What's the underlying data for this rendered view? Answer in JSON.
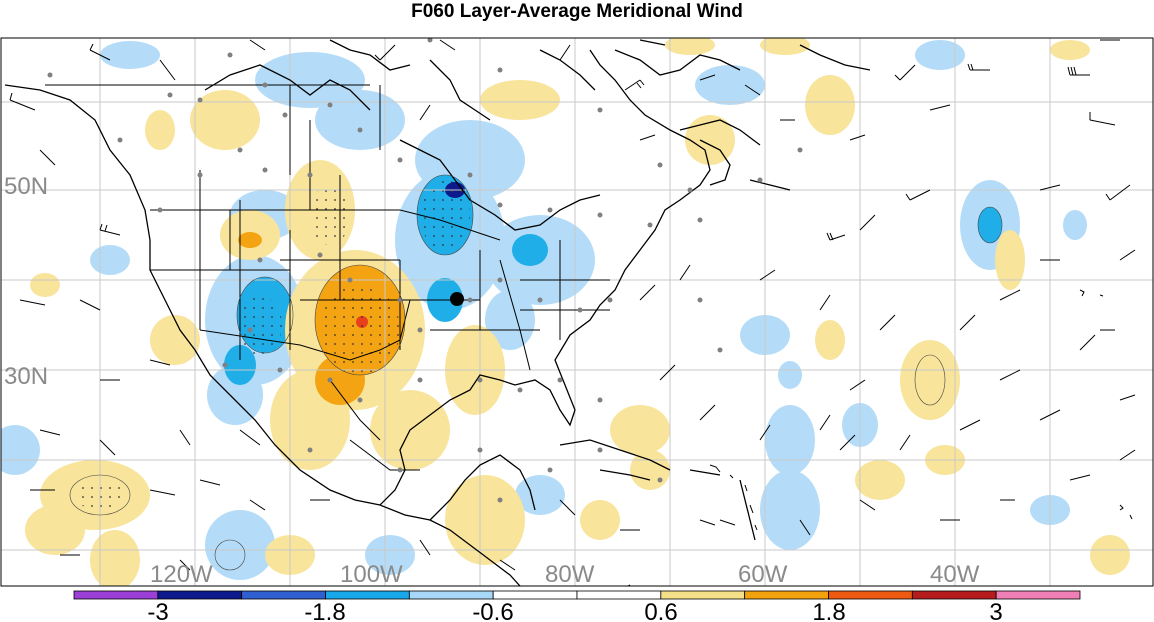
{
  "title": "F060 Layer-Average Meridional Wind",
  "lat_labels": [
    "50N",
    "30N"
  ],
  "lon_labels": [
    "120W",
    "100W",
    "80W",
    "60W",
    "40W"
  ],
  "colorbar": {
    "colors": [
      "#9b3fd6",
      "#0d1a8c",
      "#2f5fd0",
      "#18a8ea",
      "#a8d8f7",
      "#ffffff",
      "#ffffff",
      "#f5e08a",
      "#f2a20c",
      "#ef5a12",
      "#b51d1d",
      "#f07fb6"
    ],
    "labels": [
      "-3",
      "-1.8",
      "-0.6",
      "0.6",
      "1.8",
      "3"
    ]
  },
  "colors": {
    "neg_light": "#b4dcf8",
    "neg_mid": "#20aee8",
    "pos_light": "#f8e49a",
    "pos_mid": "#f4a413",
    "pos_strong": "#e8401c",
    "coast": "#000000",
    "grid": "#c8c8c8",
    "barb": "#000000",
    "station": "#808080"
  }
}
